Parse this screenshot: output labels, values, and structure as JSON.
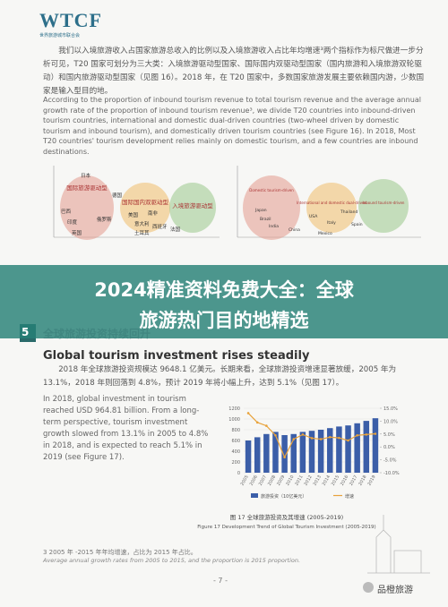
{
  "header": {
    "logo": "WTCF",
    "logo_sub": "世界旅游城市联合会"
  },
  "intro": {
    "zh": "我们以入境旅游收入占国家旅游总收入的比例以及入境旅游收入占比年均增速³两个指标作为标尺做进一步分析可见，T20 国家可划分为三大类：入境旅游驱动型国家、国际国内双驱动型国家（国内旅游和入境旅游双轮驱动）和国内旅游驱动型国家（见图 16）。2018 年，在 T20 国家中，多数国家旅游发展主要依赖国内游，少数国家是输入型目的地。",
    "en": "According to the proportion of inbound tourism revenue to total tourism revenue and the average annual growth rate of the proportion of inbound tourism revenue³, we divide T20 countries into inbound-driven tourism countries, international and domestic dual-driven countries (two-wheel driven by domestic tourism and inbound tourism), and domestically driven tourism countries (see Figure 16). In 2018, Most T20 countries' tourism development relies mainly on domestic tourism, and a few countries are inbound destinations."
  },
  "fig16": {
    "left": {
      "groups": [
        "国际旅游驱动型",
        "国际国内双驱动型",
        "入境旅游驱动型"
      ],
      "countries": [
        "日本",
        "巴西",
        "印度",
        "俄罗斯",
        "美国",
        "南非",
        "意大利",
        "西班牙",
        "土耳其",
        "英国",
        "法国",
        "德国"
      ]
    },
    "right": {
      "groups": [
        "Domestic tourism-driven",
        "International and domestic dual-driven",
        "Inbound tourism-driven"
      ],
      "countries": [
        "Japan",
        "Brazil",
        "India",
        "China",
        "USA",
        "Italy",
        "Thailand",
        "Spain",
        "Mexico"
      ]
    }
  },
  "banner": {
    "line1": "2024精准资料免费大全：全球",
    "line2": "旅游热门目的地精选"
  },
  "section": {
    "number": "5",
    "title_zh": "全球旅游投资持续回升",
    "title_en": "Global tourism investment rises steadily"
  },
  "body": {
    "zh": "2018 年全球旅游投资规模达 9648.1 亿美元。长期来看，全球旅游投资增速显著放缓，2005 年为 13.1%，2018 年则回落到 4.8%，预计 2019 年将小幅上升，达到 5.1%（见图 17）。",
    "en": "In 2018, global investment in tourism reached USD 964.81 billion. From a long-term perspective, tourism investment growth slowed from 13.1% in 2005 to 4.8% in 2018, and is expected to reach 5.1% in 2019 (see Figure 17)."
  },
  "chart_data": {
    "type": "bar",
    "categories": [
      "2005",
      "2006",
      "2007",
      "2008",
      "2009",
      "2010",
      "2011",
      "2012",
      "2013",
      "2014",
      "2015",
      "2016",
      "2017",
      "2018",
      "2019"
    ],
    "series": [
      {
        "name": "旅游投资（10亿美元）",
        "color": "#3b5ea8",
        "values": [
          600,
          660,
          720,
          760,
          700,
          720,
          760,
          780,
          800,
          830,
          860,
          880,
          920,
          964.81,
          1014
        ]
      },
      {
        "name": "增速",
        "color": "#e8a33c",
        "axis": "y2",
        "values": [
          13.1,
          9.5,
          8.2,
          4.5,
          -4,
          3,
          4.8,
          3.4,
          3,
          3.8,
          3.5,
          2.5,
          4.5,
          4.8,
          5.1
        ]
      }
    ],
    "ylim": [
      0,
      1200
    ],
    "yticks": [
      0,
      200,
      400,
      600,
      800,
      1000,
      1200
    ],
    "y2lim": [
      -10,
      15
    ],
    "y2ticks": [
      {
        "value": -10,
        "label": "-10.0%"
      },
      {
        "value": -5,
        "label": "-5.0%"
      },
      {
        "value": 0,
        "label": "0.0%"
      },
      {
        "value": 5,
        "label": "5.0%"
      },
      {
        "value": 10,
        "label": "10.0%"
      },
      {
        "value": 15,
        "label": "15.0%"
      }
    ],
    "caption_zh": "图 17 全球旅游投资及其增速 (2005-2019)",
    "caption_en": "Figure 17 Development Trend of Global Tourism Investment (2005-2019)"
  },
  "footnote": {
    "zh": "3 2005 年 -2015 年年均增速，占比为 2015 年占比。",
    "en": "Average annual growth rates from 2005 to 2015, and the proportion is 2015 proportion."
  },
  "page_number": "- 7 -",
  "watermark": "品橙旅游"
}
